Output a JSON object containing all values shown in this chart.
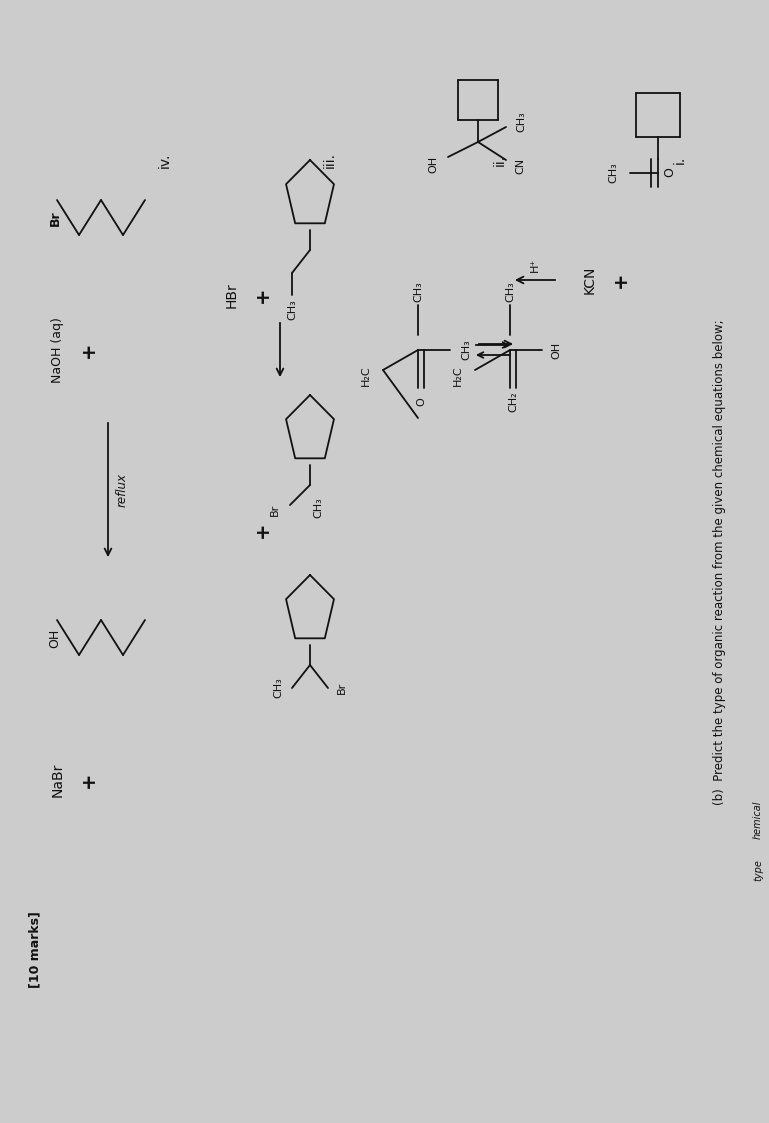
{
  "bg_color": "#cccccc",
  "text_color": "#111111",
  "title": "(b)  Predict the type of organic reaction from the given chemical equations below;",
  "reaction_i_label": "i.",
  "reaction_ii_label": "ii.",
  "reaction_iii_label": "iii.",
  "reaction_iv_label": "iv.",
  "marks": "[10 marks]"
}
